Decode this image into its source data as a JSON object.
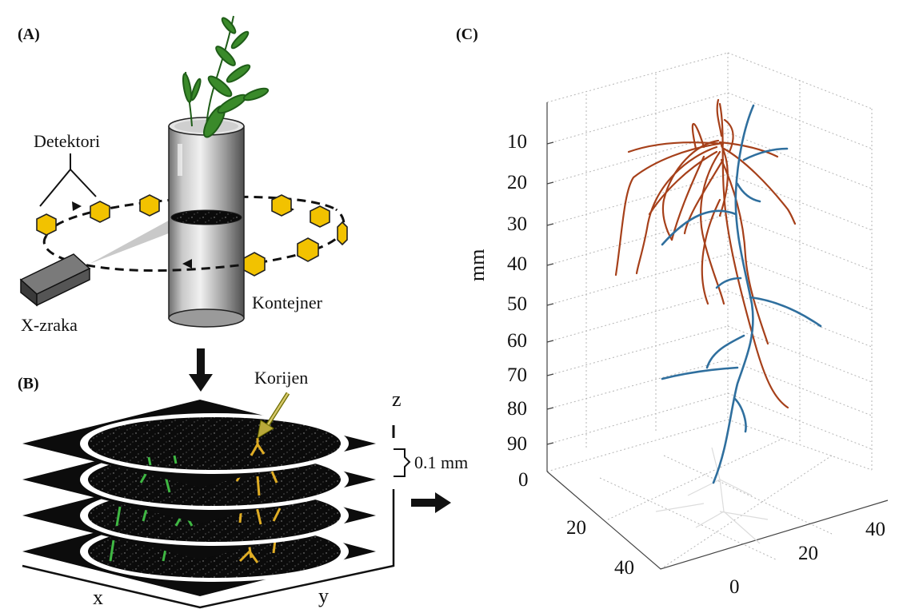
{
  "panels": {
    "a": "(A)",
    "b": "(B)",
    "c": "(C)"
  },
  "panel_a": {
    "detectors_label": "Detektori",
    "source_label": "X-zraka",
    "container_label": "Kontejner"
  },
  "panel_b": {
    "root_label": "Korijen",
    "spacing_label": "0.1 mm",
    "x_label": "x",
    "y_label": "y",
    "z_label": "z"
  },
  "panel_c": {
    "vertical_unit": "mm",
    "z_ticks": [
      "10",
      "20",
      "30",
      "40",
      "50",
      "60",
      "70",
      "80",
      "90"
    ],
    "base_tick_zero": "0",
    "left_axis_ticks": [
      "20",
      "40"
    ],
    "front_axis_ticks": [
      "0",
      "20"
    ],
    "right_axis_ticks": [
      "40"
    ]
  },
  "colors": {
    "detector": "#f2c200",
    "root_green": "#3fb843",
    "root_yellow": "#e0ad24",
    "root_brown": "#a6401a",
    "root_blue": "#2f6f9e",
    "grid": "#b5b5b5"
  }
}
